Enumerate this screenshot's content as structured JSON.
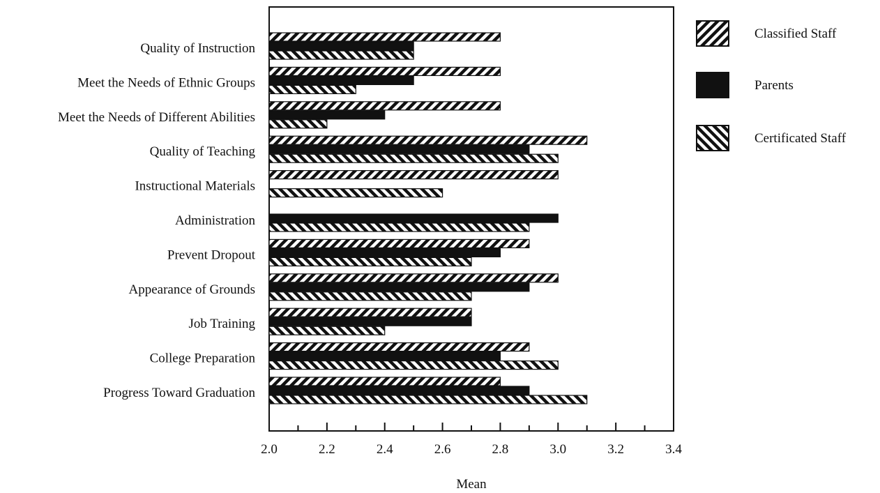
{
  "chart_data": {
    "type": "bar",
    "orientation": "horizontal",
    "title": "",
    "xlabel": "Mean",
    "ylabel": "",
    "xlim": [
      2.0,
      3.4
    ],
    "x_ticks": [
      "2.0",
      "2.2",
      "2.4",
      "2.6",
      "2.8",
      "3.0",
      "3.2",
      "3.4"
    ],
    "grid": false,
    "legend_position": "right",
    "categories": [
      "Quality of Instruction",
      "Meet the Needs of Ethnic Groups",
      "Meet the Needs of Different Abilities",
      "Quality of Teaching",
      "Instructional Materials",
      "Administration",
      "Prevent Dropout",
      "Appearance of Grounds",
      "Job Training",
      "College Preparation",
      "Progress Toward Graduation"
    ],
    "series": [
      {
        "name": "Classified Staff",
        "pattern": "back-diagonal-hatch",
        "values": [
          2.8,
          2.8,
          2.8,
          3.1,
          3.0,
          null,
          2.9,
          3.0,
          2.7,
          2.9,
          2.8
        ]
      },
      {
        "name": "Parents",
        "pattern": "solid",
        "color": "#111111",
        "values": [
          2.5,
          2.5,
          2.4,
          2.9,
          null,
          3.0,
          2.8,
          2.9,
          2.7,
          2.8,
          2.9
        ]
      },
      {
        "name": "Certificated Staff",
        "pattern": "forward-diagonal-hatch",
        "values": [
          2.5,
          2.3,
          2.2,
          3.0,
          2.6,
          2.9,
          2.7,
          2.7,
          2.4,
          3.0,
          3.1
        ]
      }
    ]
  }
}
